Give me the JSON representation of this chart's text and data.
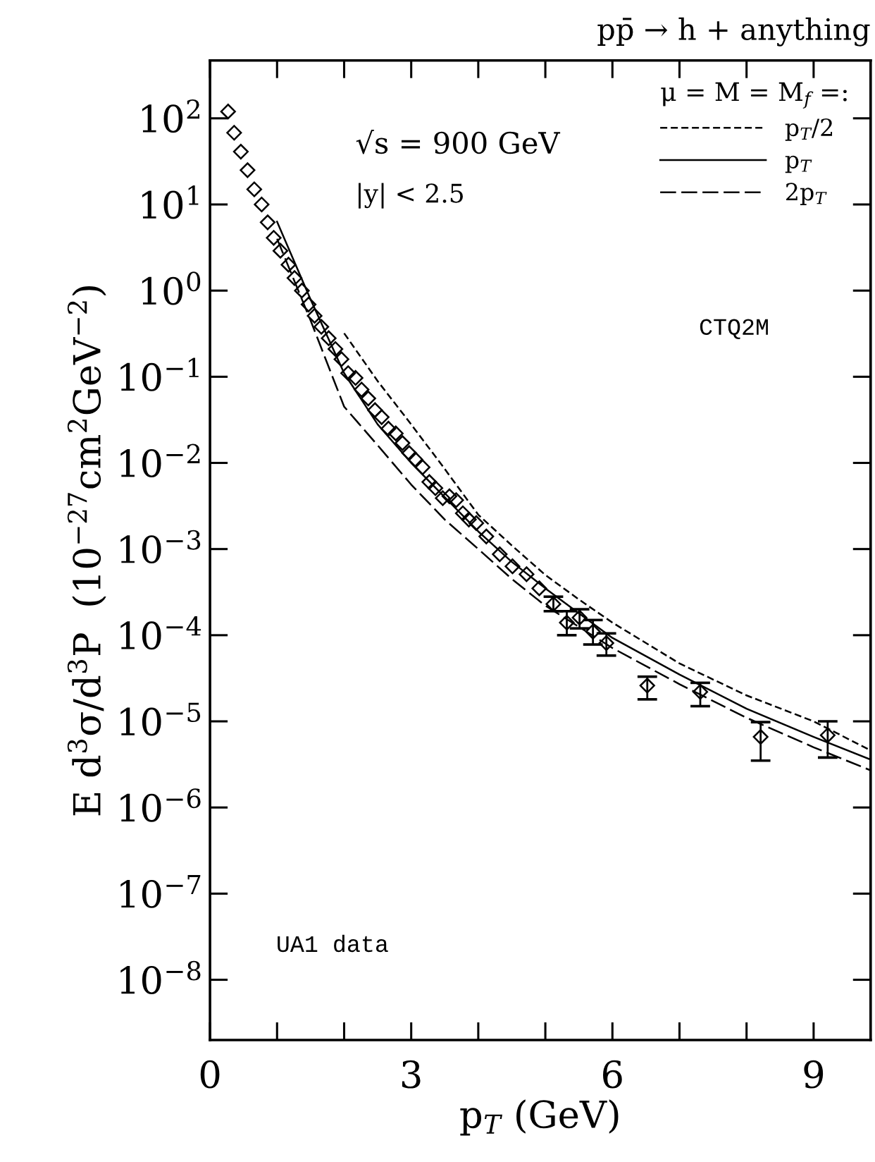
{
  "chart_data": {
    "type": "scatter",
    "title": "pp̄ → h + anything",
    "xlabel": "p$_{T}$ (GeV)",
    "ylabel": "E d$^{3}$σ/d$^{3}$P  (10$^{−27}$cm$^{2}$GeV$^{−2}$)",
    "legend_title": "μ = M = M$_{f}$ =:",
    "legend": "top right",
    "log": "y",
    "xlim": [
      0,
      9.85
    ],
    "xticks": [
      0,
      {
        "value": 1,
        "label": null
      },
      {
        "value": 2,
        "label": null
      },
      3,
      {
        "value": 4,
        "label": null
      },
      {
        "value": 5,
        "label": null
      },
      6,
      {
        "value": 7,
        "label": null
      },
      {
        "value": 8,
        "label": null
      },
      9
    ],
    "ylim": [
      2e-09,
      470
    ],
    "yticks": [
      {
        "value": 1e-08,
        "label": "10$^{−8}$"
      },
      {
        "value": 1e-07,
        "label": "10$^{−7}$"
      },
      {
        "value": 1e-06,
        "label": "10$^{−6}$"
      },
      {
        "value": 1e-05,
        "label": "10$^{−5}$"
      },
      {
        "value": 0.0001,
        "label": "10$^{−4}$"
      },
      {
        "value": 0.001,
        "label": "10$^{−3}$"
      },
      {
        "value": 0.01,
        "label": "10$^{−2}$"
      },
      {
        "value": 0.1,
        "label": "10$^{−1}$"
      },
      {
        "value": 1,
        "label": "10$^{0}$"
      },
      {
        "value": 10,
        "label": "10$^{1}$"
      },
      {
        "value": 100,
        "label": "10$^{2}$"
      }
    ],
    "annotations": [
      "√s = 900 GeV",
      "|y| < 2.5",
      "CTQ2M",
      "UA1 data"
    ],
    "series": [
      {
        "marker": "diamond",
        "color": "#000000",
        "x": [
          0.27,
          0.36,
          0.46,
          0.56,
          0.66,
          0.77,
          0.86,
          0.95,
          1.05,
          1.17,
          1.26,
          1.37,
          1.47,
          1.56,
          1.66,
          1.77,
          1.87,
          1.96,
          2.06,
          2.17,
          2.26,
          2.36,
          2.46,
          2.56,
          2.66,
          2.77,
          2.87,
          2.97,
          3.06,
          3.17,
          3.27,
          3.36,
          3.47,
          3.57,
          3.67,
          3.77,
          3.86,
          3.97,
          4.12,
          4.32,
          4.51,
          4.72,
          4.91,
          5.12,
          5.32,
          5.51,
          5.71,
          5.91,
          6.52,
          7.31,
          8.21,
          9.21
        ],
        "values": [
          120,
          68,
          41,
          25,
          15,
          10,
          6.2,
          4.1,
          2.9,
          2.0,
          1.4,
          1.0,
          0.69,
          0.51,
          0.38,
          0.28,
          0.21,
          0.16,
          0.11,
          0.097,
          0.071,
          0.056,
          0.041,
          0.034,
          0.025,
          0.022,
          0.017,
          0.013,
          0.011,
          0.0089,
          0.006,
          0.0051,
          0.0039,
          0.0041,
          0.0037,
          0.0026,
          0.0022,
          0.002,
          0.0014,
          0.00087,
          0.00063,
          0.00051,
          0.00035,
          0.00023,
          0.00014,
          0.00016,
          0.00011,
          8.1e-05,
          2.6e-05,
          2.2e-05,
          6.6e-06,
          6.9e-06
        ],
        "errors": [
          null,
          null,
          null,
          null,
          null,
          null,
          null,
          null,
          null,
          null,
          null,
          null,
          null,
          null,
          null,
          null,
          null,
          null,
          null,
          null,
          null,
          null,
          null,
          null,
          null,
          null,
          null,
          null,
          null,
          null,
          null,
          null,
          null,
          null,
          null,
          null,
          null,
          null,
          null,
          null,
          null,
          null,
          null,
          [
            0.00019,
            0.00028
          ],
          [
            0.0001,
            0.00019
          ],
          [
            0.00012,
            0.0002
          ],
          [
            7.8e-05,
            0.00015
          ],
          [
            5.8e-05,
            0.000105
          ],
          [
            1.8e-05,
            3.3e-05
          ],
          [
            1.5e-05,
            2.8e-05
          ],
          [
            3.5e-06,
            9.8e-06
          ],
          [
            3.8e-06,
            1e-05
          ]
        ]
      },
      {
        "type": "line",
        "name": "p$_{T}$/2",
        "line_style": "dashed",
        "color": "#000000",
        "x": [
          2.0,
          2.5,
          3.0,
          3.5,
          4.0,
          4.5,
          5.0,
          5.5,
          6.0,
          7.0,
          8.0,
          9.0,
          9.85
        ],
        "values": [
          0.32,
          0.089,
          0.028,
          0.0085,
          0.0025,
          0.0011,
          0.0005,
          0.00026,
          0.00014,
          4.7e-05,
          2e-05,
          1e-05,
          4.6e-06
        ]
      },
      {
        "type": "line",
        "name": "p$_{T}$",
        "line_style": "solid",
        "color": "#000000",
        "x": [
          1.0,
          1.5,
          2.0,
          2.5,
          3.0,
          3.5,
          4.0,
          4.5,
          5.0,
          5.5,
          6.0,
          7.0,
          8.0,
          9.0,
          9.85
        ],
        "values": [
          6.3,
          0.79,
          0.11,
          0.028,
          0.01,
          0.004,
          0.0016,
          0.00071,
          0.00035,
          0.00018,
          9.3e-05,
          3.5e-05,
          1.4e-05,
          6.6e-06,
          3.6e-06
        ]
      },
      {
        "type": "line",
        "name": "2p$_{T}$",
        "line_style": "longdash",
        "color": "#000000",
        "x": [
          1.0,
          1.5,
          2.0,
          2.5,
          3.0,
          3.5,
          4.0,
          4.5,
          5.0,
          6.0,
          7.0,
          8.0,
          9.0,
          9.85
        ],
        "values": [
          4.0,
          0.45,
          0.045,
          0.016,
          0.0056,
          0.0022,
          0.001,
          0.00045,
          0.00022,
          7.1e-05,
          2.7e-05,
          1.1e-05,
          5e-06,
          2.7e-06
        ]
      }
    ]
  }
}
